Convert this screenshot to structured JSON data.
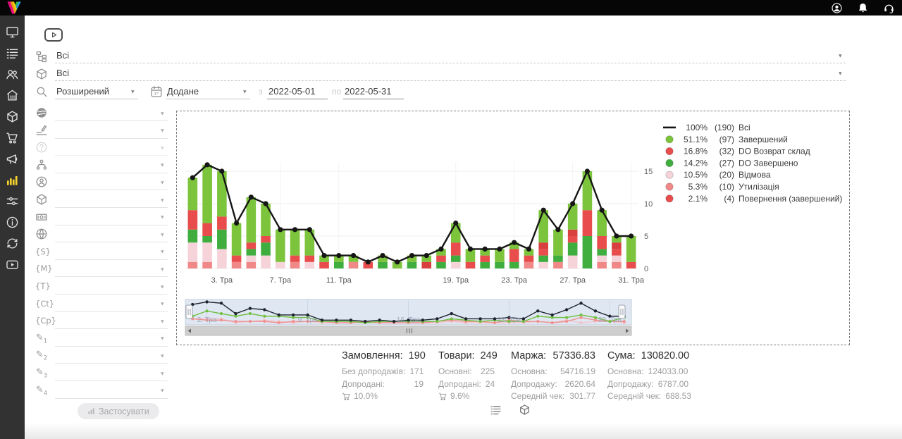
{
  "topbar": {
    "icons": [
      {
        "name": "user-icon"
      },
      {
        "name": "bell-icon"
      },
      {
        "name": "headset-icon"
      }
    ]
  },
  "sidebar": {
    "active_color": "#f6d32d",
    "items": [
      {
        "name": "dashboard",
        "icon": "monitor-icon",
        "active": false
      },
      {
        "name": "orders",
        "icon": "orders-list-icon",
        "active": false
      },
      {
        "name": "customers",
        "icon": "customers-icon",
        "active": false
      },
      {
        "name": "warehouse",
        "icon": "store-icon",
        "active": false
      },
      {
        "name": "products",
        "icon": "package-icon",
        "active": false
      },
      {
        "name": "procurement",
        "icon": "cart-icon",
        "active": false
      },
      {
        "name": "marketing",
        "icon": "megaphone-icon",
        "active": false
      },
      {
        "name": "analytics",
        "icon": "chart-bars-icon",
        "active": true
      },
      {
        "name": "automation",
        "icon": "sliders-icon",
        "active": false
      },
      {
        "name": "info",
        "icon": "info-icon",
        "active": false
      },
      {
        "name": "integrations",
        "icon": "sync-icon",
        "active": false
      },
      {
        "name": "video-tutorials",
        "icon": "video-icon",
        "active": false
      }
    ]
  },
  "filters": {
    "source_all": {
      "icon": "sitemap-icon",
      "value": "Всі"
    },
    "product_all": {
      "icon": "package-icon",
      "value": "Всі"
    },
    "search_mode": {
      "icon": "search-icon",
      "value": "Розширений"
    },
    "date_field": {
      "icon": "calendar-icon",
      "value": "Додане"
    },
    "from_label": "з",
    "date_from": "2022-05-01",
    "to_label": "по",
    "date_to": "2022-05-31",
    "side_rows": [
      {
        "name": "globe-filter",
        "icon": "globe-dark-icon"
      },
      {
        "name": "edit-lines-filter",
        "icon": "edit-lines-icon"
      },
      {
        "name": "question-filter",
        "icon": "question-icon",
        "disabled": true
      },
      {
        "name": "hierarchy-filter",
        "icon": "hierarchy-icon"
      },
      {
        "name": "manager-filter",
        "icon": "person-icon"
      },
      {
        "name": "product-filter",
        "icon": "cube-icon"
      },
      {
        "name": "payment-filter",
        "icon": "banknote-icon"
      },
      {
        "name": "website-filter",
        "icon": "globe-icon"
      },
      {
        "name": "utm-source-filter",
        "glyph": "{S}"
      },
      {
        "name": "utm-medium-filter",
        "glyph": "{M}"
      },
      {
        "name": "utm-term-filter",
        "glyph": "{T}"
      },
      {
        "name": "utm-content-filter",
        "glyph": "{Ct}"
      },
      {
        "name": "utm-campaign-filter",
        "glyph": "{Cp}"
      },
      {
        "name": "custom-field-1-filter",
        "glyph": "✎",
        "sub": "1"
      },
      {
        "name": "custom-field-2-filter",
        "glyph": "✎",
        "sub": "2"
      },
      {
        "name": "custom-field-3-filter",
        "glyph": "✎",
        "sub": "3"
      },
      {
        "name": "custom-field-4-filter",
        "glyph": "✎",
        "sub": "4"
      }
    ],
    "apply_button": {
      "label": "Застосувати"
    }
  },
  "chart_data": {
    "type": "bar",
    "stacked": true,
    "days": 31,
    "x_tick_days": [
      3,
      7,
      11,
      19,
      23,
      27,
      31
    ],
    "x_tick_labels": [
      "3. Тра",
      "7. Тра",
      "11. Тра",
      "19. Тра",
      "23. Тра",
      "27. Тра",
      "31. Тра"
    ],
    "yticks": [
      0,
      5,
      10,
      15
    ],
    "ylim": [
      0,
      17
    ],
    "grid": true,
    "legend_position": "top-right",
    "line_series": {
      "name": "Всі",
      "color": "#161616",
      "values": [
        14,
        16,
        15,
        7,
        11,
        10,
        6,
        6,
        6,
        2,
        2,
        2,
        1,
        2,
        1,
        2,
        2,
        3,
        7,
        3,
        3,
        3,
        4,
        3,
        9,
        6,
        10,
        15,
        9,
        5,
        5
      ]
    },
    "bar_series": [
      {
        "name": "Утилізація",
        "color": "#f08888",
        "values": [
          1,
          1,
          0,
          1,
          1,
          0,
          0,
          1,
          0,
          0,
          0,
          1,
          0,
          0,
          0,
          0,
          0,
          0,
          0,
          0,
          0,
          0,
          0,
          1,
          0,
          1,
          0,
          0,
          1,
          1,
          0
        ]
      },
      {
        "name": "Відмова",
        "color": "#f5d3d9",
        "values": [
          3,
          3,
          3,
          0,
          1,
          2,
          1,
          0,
          1,
          0,
          0,
          0,
          0,
          0,
          0,
          0,
          0,
          0,
          1,
          0,
          0,
          0,
          0,
          0,
          1,
          0,
          2,
          0,
          1,
          1,
          0
        ]
      },
      {
        "name": "DO Завершено",
        "color": "#3fae3f",
        "values": [
          2,
          1,
          3,
          0,
          1,
          2,
          0,
          0,
          0,
          0,
          1,
          0,
          0,
          1,
          0,
          1,
          0,
          1,
          1,
          0,
          1,
          1,
          1,
          0,
          1,
          1,
          2,
          5,
          1,
          0,
          0
        ]
      },
      {
        "name": "DO Возврат склад",
        "color": "#e84c4c",
        "values": [
          3,
          2,
          2,
          1,
          1,
          1,
          0,
          1,
          1,
          1,
          0,
          0,
          1,
          0,
          0,
          0,
          0,
          1,
          2,
          1,
          1,
          0,
          2,
          1,
          1,
          0,
          1,
          4,
          2,
          1,
          1
        ]
      },
      {
        "name": "Повернення (завершений)",
        "color": "#d84040",
        "values": [
          0,
          0,
          0,
          0,
          0,
          0,
          0,
          0,
          0,
          0,
          0,
          0,
          0,
          0,
          0,
          0,
          1,
          0,
          0,
          0,
          0,
          0,
          0,
          0,
          1,
          0,
          1,
          0,
          0,
          1,
          0
        ]
      },
      {
        "name": "Завершений",
        "color": "#7cc43c",
        "values": [
          5,
          9,
          7,
          5,
          7,
          5,
          5,
          4,
          4,
          1,
          1,
          1,
          0,
          1,
          1,
          1,
          1,
          1,
          3,
          2,
          1,
          2,
          1,
          1,
          5,
          4,
          4,
          6,
          4,
          1,
          4
        ]
      }
    ],
    "legend": [
      {
        "marker": "line",
        "color": "#141414",
        "pct": "100%",
        "count": "(190)",
        "label": "Всі"
      },
      {
        "marker": "circle",
        "color": "#7cc43c",
        "pct": "51.1%",
        "count": "(97)",
        "label": "Завершений"
      },
      {
        "marker": "circle",
        "color": "#e84c4c",
        "pct": "16.8%",
        "count": "(32)",
        "label": "DO Возврат склад"
      },
      {
        "marker": "circle",
        "color": "#3fae3f",
        "pct": "14.2%",
        "count": "(27)",
        "label": "DO Завершено"
      },
      {
        "marker": "circle",
        "color": "#f5d3d9",
        "pct": "10.5%",
        "count": "(20)",
        "label": "Відмова"
      },
      {
        "marker": "circle",
        "color": "#f08888",
        "pct": "5.3%",
        "count": "(10)",
        "label": "Утилізація"
      },
      {
        "marker": "circle",
        "color": "#e84c4c",
        "pct": "2.1%",
        "count": "(4)",
        "label": "Повернення (завершений)"
      }
    ],
    "navigator": {
      "labels": [
        {
          "day": 2,
          "label": "2. Тра"
        },
        {
          "day": 9,
          "label": "9. Тра"
        },
        {
          "day": 16,
          "label": "16. Тра"
        },
        {
          "day": 23,
          "label": "23. Тра"
        },
        {
          "day": 30,
          "label": "30. Тра"
        }
      ]
    }
  },
  "stats": {
    "cards": [
      {
        "name": "orders",
        "title": "Замовлення:",
        "value": "190",
        "rows": [
          {
            "label": "Без допродажів:",
            "value": "171"
          },
          {
            "label": "Допродані:",
            "value": "19"
          }
        ],
        "cart_pct": "10.0%"
      },
      {
        "name": "items",
        "title": "Товари:",
        "value": "249",
        "rows": [
          {
            "label": "Основні:",
            "value": "225"
          },
          {
            "label": "Допродані:",
            "value": "24"
          }
        ],
        "cart_pct": "9.6%"
      },
      {
        "name": "margin",
        "title": "Маржа:",
        "value": "57336.83",
        "rows": [
          {
            "label": "Основна:",
            "value": "54716.19"
          },
          {
            "label": "Допродажу:",
            "value": "2620.64"
          },
          {
            "label": "Середній чек:",
            "value": "301.77"
          }
        ]
      },
      {
        "name": "sum",
        "title": "Сума:",
        "value": "130820.00",
        "rows": [
          {
            "label": "Основна:",
            "value": "124033.00"
          },
          {
            "label": "Допродажу:",
            "value": "6787.00"
          },
          {
            "label": "Середній чек:",
            "value": "688.53"
          }
        ]
      }
    ]
  },
  "footer": {
    "icons": [
      {
        "name": "summary-list-icon",
        "icon": "orders-list-icon"
      },
      {
        "name": "summary-box-icon",
        "icon": "cube-icon"
      }
    ]
  }
}
